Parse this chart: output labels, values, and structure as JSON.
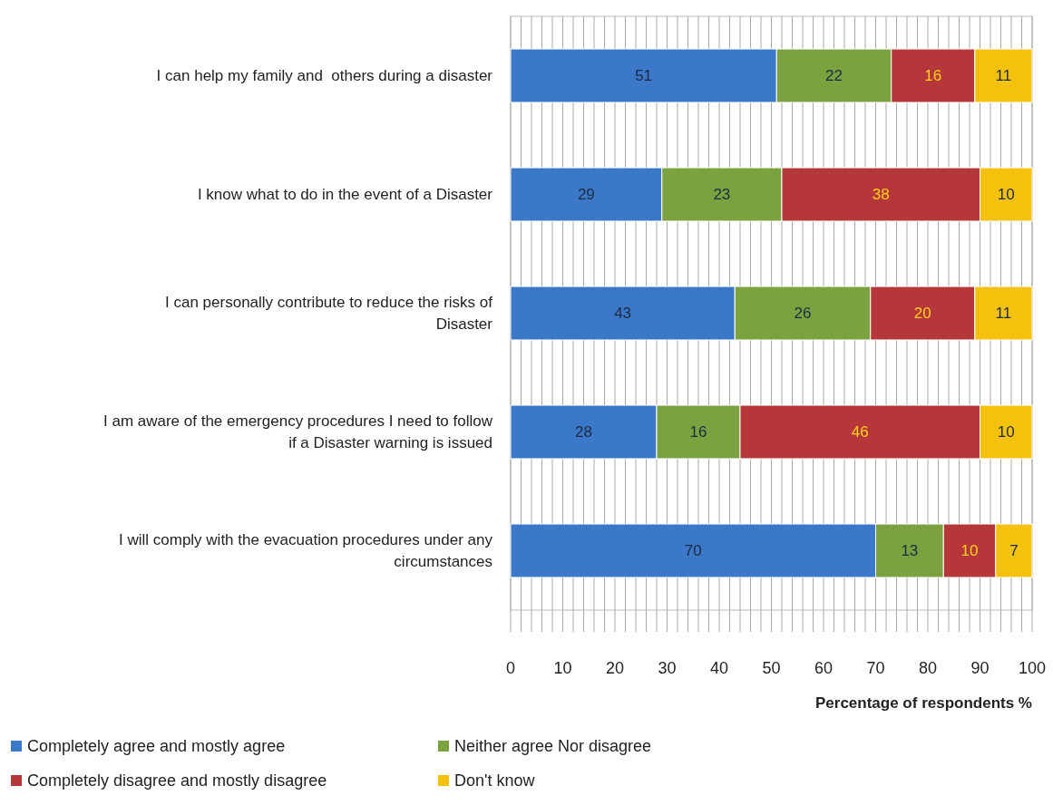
{
  "chart_data": {
    "type": "bar",
    "orientation": "horizontal",
    "stacked": true,
    "xlabel": "Percentage of respondents %",
    "categories": [
      "I can help my family and  others during a disaster",
      "I know what to do in the event of a Disaster",
      "I can personally contribute to reduce the risks of Disaster",
      "I am aware of the emergency procedures I need to follow if a Disaster warning is issued",
      "I will comply with the evacuation procedures under any circumstances"
    ],
    "series": [
      {
        "name": "Completely agree and mostly agree",
        "color": "#3b78c8",
        "values": [
          51,
          29,
          43,
          28,
          70
        ]
      },
      {
        "name": "Neither agree Nor disagree",
        "color": "#7ba23f",
        "values": [
          22,
          23,
          26,
          16,
          13
        ]
      },
      {
        "name": "Completely disagree and mostly disagree",
        "color": "#b5373a",
        "values": [
          16,
          38,
          20,
          46,
          10
        ]
      },
      {
        "name": "Don't know",
        "color": "#f4c20d",
        "values": [
          11,
          10,
          11,
          10,
          7
        ]
      }
    ],
    "xlim": [
      0,
      100
    ],
    "xticks": [
      0,
      {
        "value": 2,
        "label": null
      },
      {
        "value": 4,
        "label": null
      },
      {
        "value": 6,
        "label": null
      },
      {
        "value": 8,
        "label": null
      },
      10,
      {
        "value": 12,
        "label": null
      },
      {
        "value": 14,
        "label": null
      },
      {
        "value": 16,
        "label": null
      },
      {
        "value": 18,
        "label": null
      },
      20,
      {
        "value": 22,
        "label": null
      },
      {
        "value": 24,
        "label": null
      },
      {
        "value": 26,
        "label": null
      },
      {
        "value": 28,
        "label": null
      },
      30,
      {
        "value": 32,
        "label": null
      },
      {
        "value": 34,
        "label": null
      },
      {
        "value": 36,
        "label": null
      },
      {
        "value": 38,
        "label": null
      },
      40,
      {
        "value": 42,
        "label": null
      },
      {
        "value": 44,
        "label": null
      },
      {
        "value": 46,
        "label": null
      },
      {
        "value": 48,
        "label": null
      },
      50,
      {
        "value": 52,
        "label": null
      },
      {
        "value": 54,
        "label": null
      },
      {
        "value": 56,
        "label": null
      },
      {
        "value": 58,
        "label": null
      },
      60,
      {
        "value": 62,
        "label": null
      },
      {
        "value": 64,
        "label": null
      },
      {
        "value": 66,
        "label": null
      },
      {
        "value": 68,
        "label": null
      },
      70,
      {
        "value": 72,
        "label": null
      },
      {
        "value": 74,
        "label": null
      },
      {
        "value": 76,
        "label": null
      },
      {
        "value": 78,
        "label": null
      },
      80,
      {
        "value": 82,
        "label": null
      },
      {
        "value": 84,
        "label": null
      },
      {
        "value": 86,
        "label": null
      },
      {
        "value": 88,
        "label": null
      },
      90,
      {
        "value": 92,
        "label": null
      },
      {
        "value": 94,
        "label": null
      },
      {
        "value": 96,
        "label": null
      },
      {
        "value": 98,
        "label": null
      },
      100
    ],
    "grid": "x",
    "data_labels": true,
    "legend": "bottom"
  }
}
